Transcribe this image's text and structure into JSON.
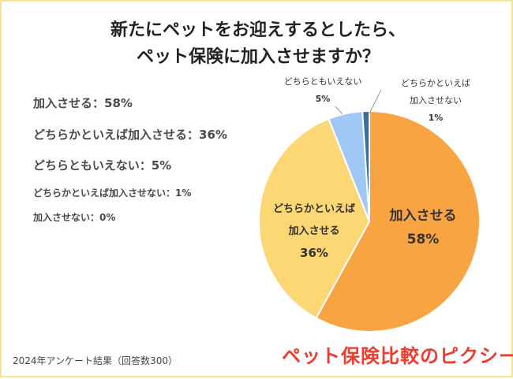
{
  "title_line1": "新たにペットをお迎えするとしたら、",
  "title_line2": "ペット保険に加入させますか？",
  "legend": [
    "加入させる：58%",
    "どちらかといえば加入させる：36%",
    "どちらともいえない：5%",
    "どちらかといえば加入させない：1%",
    "加入させない：0%"
  ],
  "pie_labels": {
    "s0_line1": "加入させる",
    "s0_line2": "58%",
    "s1_line1": "どちらかといえば",
    "s1_line2": "加入させる",
    "s1_line3": "36%",
    "s2_line1": "どちらともいえない",
    "s2_line2": "5%",
    "s3_line1": "どちらかといえば",
    "s3_line2": "加入させない",
    "s3_line3": "1%"
  },
  "footer": "2024年アンケート結果（回答数300）",
  "brand": "ペット保険比較のピクシー",
  "colors": {
    "s0": "#f9a443",
    "s1": "#fed775",
    "s2": "#9fc8f6",
    "s3": "#3e6aa0"
  },
  "chart_data": {
    "type": "pie",
    "categories": [
      "加入させる",
      "どちらかといえば加入させる",
      "どちらともいえない",
      "どちらかといえば加入させない",
      "加入させない"
    ],
    "values": [
      58,
      36,
      5,
      1,
      0
    ],
    "title": "新たにペットをお迎えするとしたら、ペット保険に加入させますか？"
  }
}
